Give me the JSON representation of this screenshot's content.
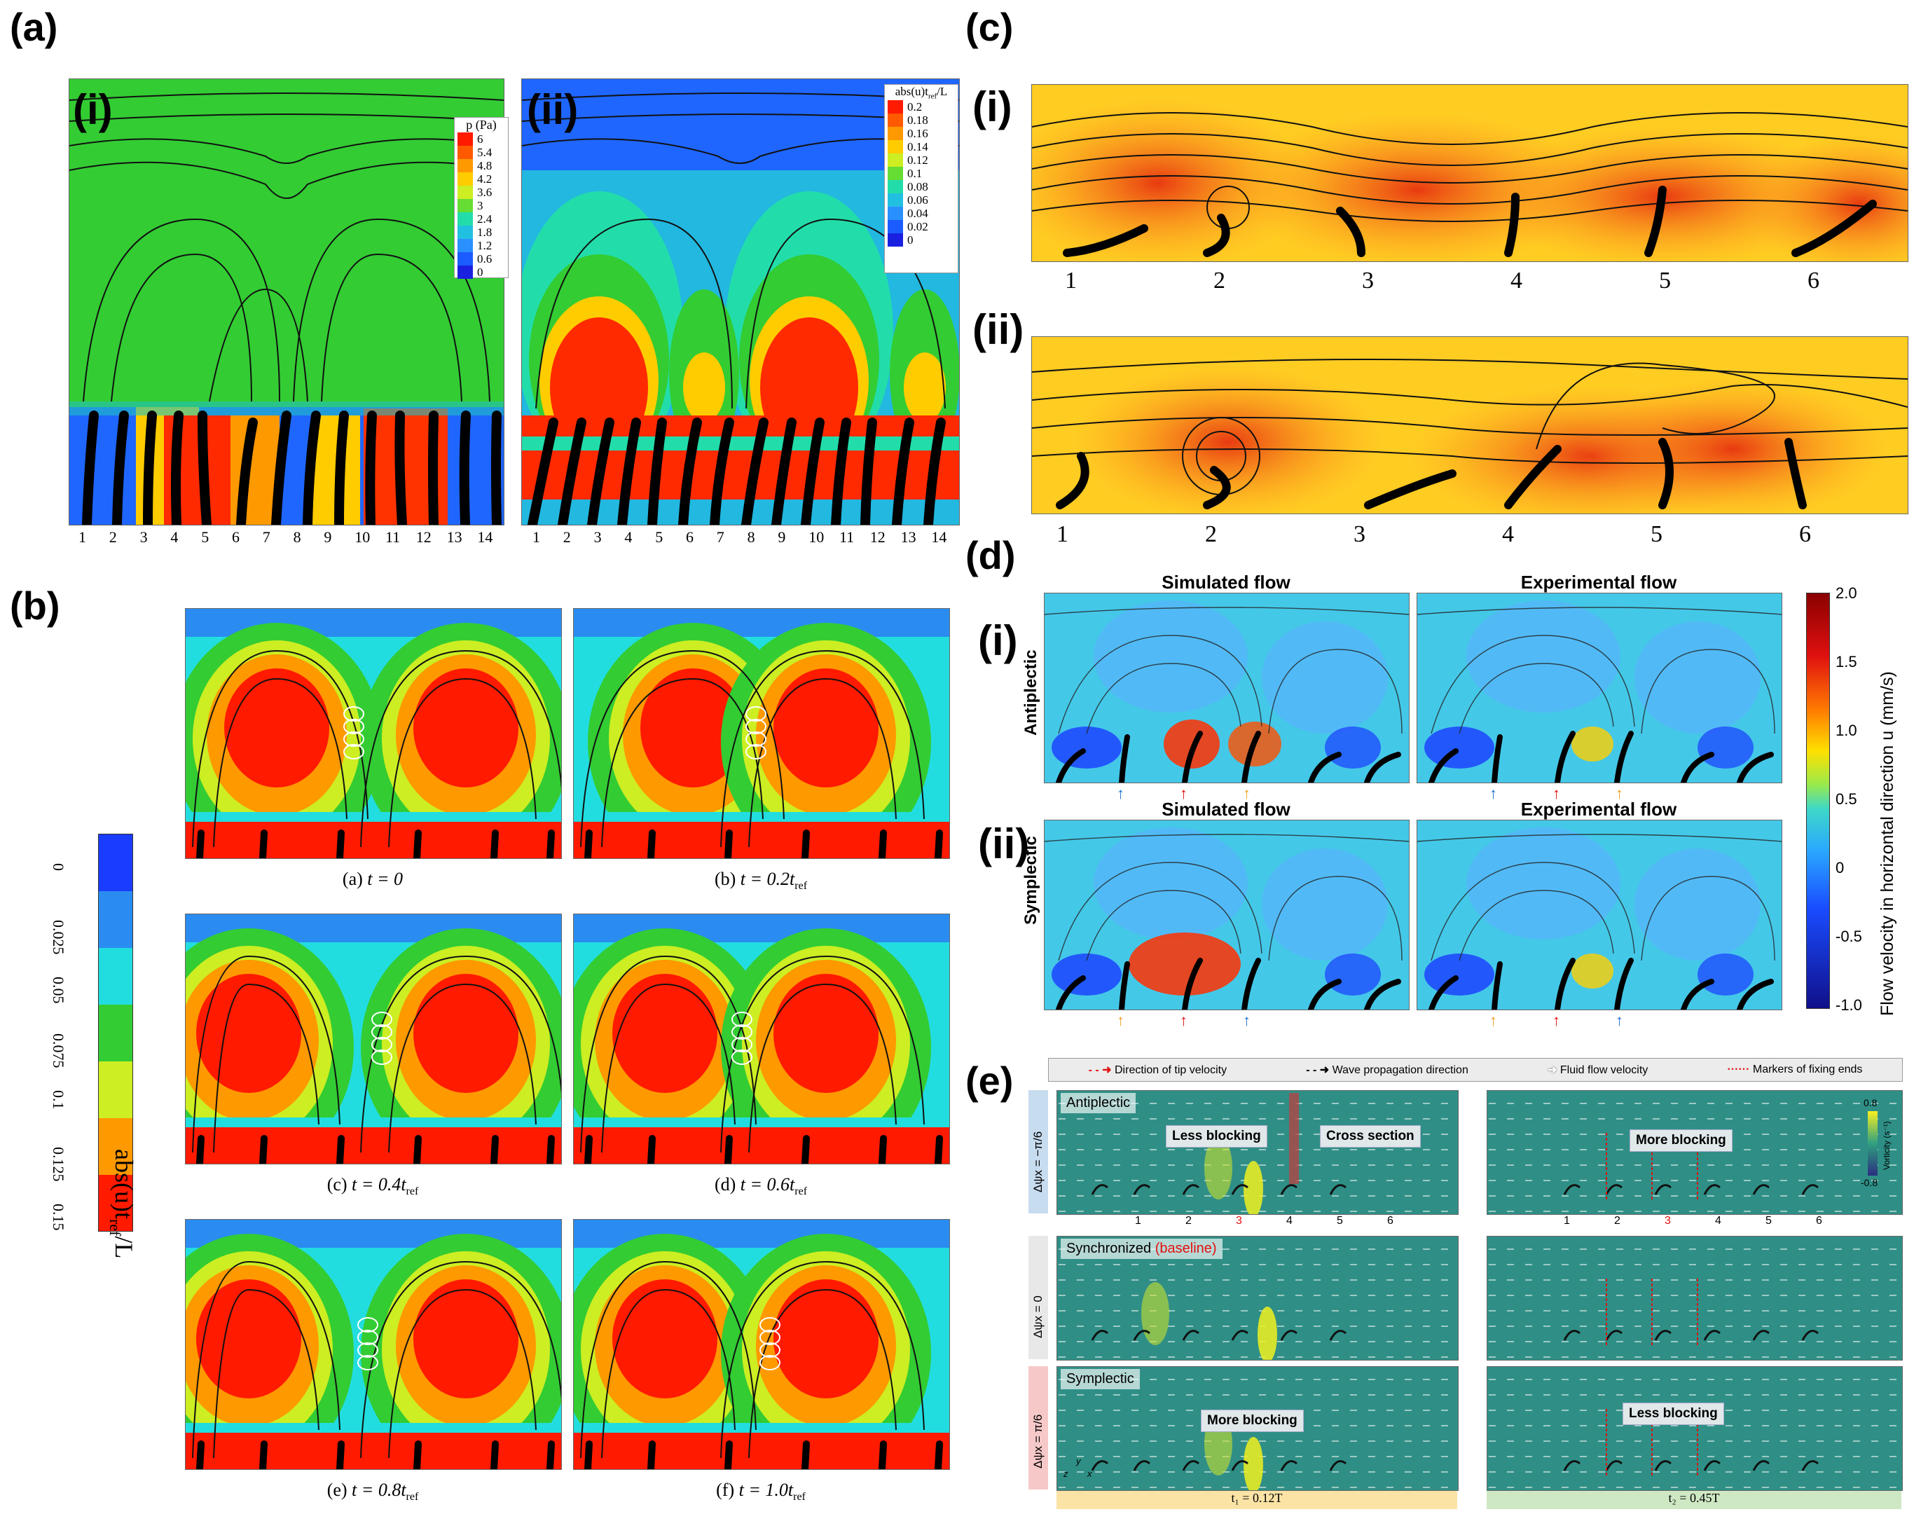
{
  "panels": {
    "a": {
      "letter": "(a)",
      "i": "(i)",
      "ii": "(ii)",
      "legend_i_title": "p (Pa)",
      "legend_i_ticks": [
        "6",
        "5.4",
        "4.8",
        "4.2",
        "3.6",
        "3",
        "2.4",
        "1.8",
        "1.2",
        "0.6",
        "0"
      ],
      "legend_ii_title": "abs(u)t",
      "legend_ii_title_sub": "ref",
      "legend_ii_title_tail": "/L",
      "legend_ii_ticks": [
        "0.2",
        "0.18",
        "0.16",
        "0.14",
        "0.12",
        "0.1",
        "0.08",
        "0.06",
        "0.04",
        "0.02",
        "0"
      ],
      "cilia_numbers": [
        "1",
        "2",
        "3",
        "4",
        "5",
        "6",
        "7",
        "8",
        "9",
        "10",
        "11",
        "12",
        "13",
        "14"
      ]
    },
    "b": {
      "letter": "(b)",
      "colorbar_ticks": [
        "0",
        "0.025",
        "0.05",
        "0.075",
        "0.1",
        "0.125",
        "0.15"
      ],
      "colorbar_label_pre": "abs(u)t",
      "colorbar_label_sub": "ref",
      "colorbar_label_post": "/L",
      "captions": [
        {
          "pre": "(a) ",
          "var": "t = 0",
          "sub": ""
        },
        {
          "pre": "(b) ",
          "var": "t = 0.2t",
          "sub": "ref"
        },
        {
          "pre": "(c) ",
          "var": "t = 0.4t",
          "sub": "ref"
        },
        {
          "pre": "(d) ",
          "var": "t = 0.6t",
          "sub": "ref"
        },
        {
          "pre": "(e) ",
          "var": "t = 0.8t",
          "sub": "ref"
        },
        {
          "pre": "(f) ",
          "var": "t = 1.0t",
          "sub": "ref"
        }
      ]
    },
    "c": {
      "letter": "(c)",
      "i": "(i)",
      "ii": "(ii)",
      "numbers": [
        "1",
        "2",
        "3",
        "4",
        "5",
        "6"
      ]
    },
    "d": {
      "letter": "(d)",
      "i": "(i)",
      "ii": "(ii)",
      "simulated": "Simulated flow",
      "experimental": "Experimental flow",
      "row_i": "Antiplectic",
      "row_ii": "Symplectic",
      "colorbar_ticks": [
        "2.0",
        "1.5",
        "1.0",
        "0.5",
        "0",
        "-0.5",
        "-1.0"
      ],
      "colorbar_label": "Flow velocity in horizontal direction u (mm/s)"
    },
    "e": {
      "letter": "(e)",
      "legend": [
        "Direction of tip velocity",
        "Wave propagation direction",
        "Fluid flow velocity",
        "Markers of fixing ends"
      ],
      "rows": [
        {
          "tag": "Antiplectic",
          "ylabel": "Δψx = −π/6"
        },
        {
          "tag": "Synchronized",
          "tag_extra": "(baseline)",
          "ylabel": "Δψx = 0"
        },
        {
          "tag": "Symplectic",
          "ylabel": "Δψx = π/6"
        }
      ],
      "bubbles": {
        "less_blocking": "Less blocking",
        "cross_section": "Cross section",
        "more_blocking": "More blocking"
      },
      "numbers": [
        "1",
        "2",
        "3",
        "4",
        "5",
        "6"
      ],
      "vort_ticks": [
        "0.8",
        "-0.8"
      ],
      "vort_label": "Vorticity (s⁻¹)",
      "t1": "t₁ = 0.12T",
      "t2": "t₂ = 0.45T",
      "axes": [
        "z",
        "y",
        "x"
      ]
    }
  }
}
